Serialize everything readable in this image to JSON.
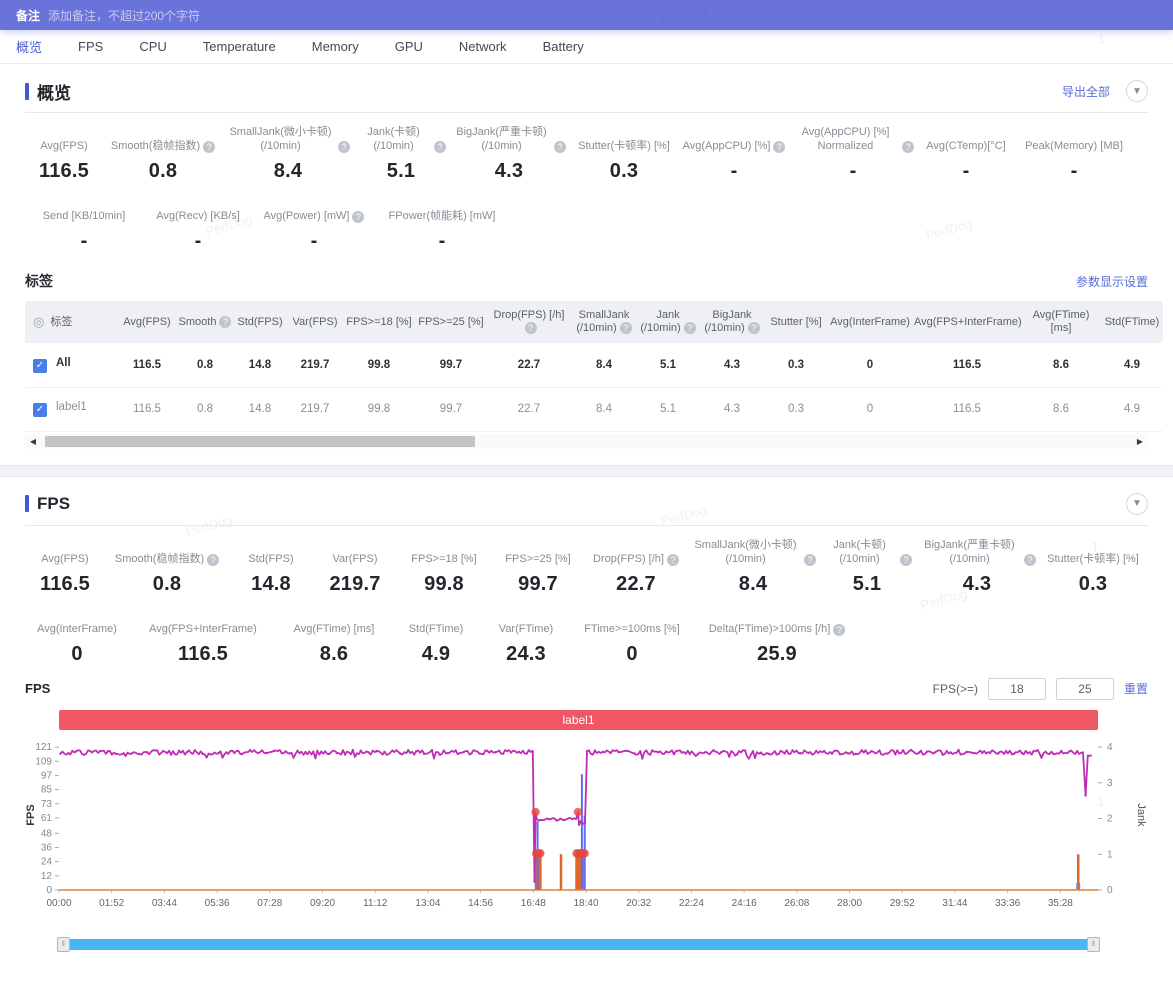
{
  "banner": {
    "label": "备注",
    "placeholder": "添加备注，不超过200个字符"
  },
  "tabs": [
    "概览",
    "FPS",
    "CPU",
    "Temperature",
    "Memory",
    "GPU",
    "Network",
    "Battery"
  ],
  "active_tab": "概览",
  "watermark_text": "PerfDog",
  "watermark_page_number": "1",
  "overview": {
    "title": "概览",
    "export_label": "导出全部",
    "metrics_row1": [
      {
        "label": "Avg(FPS)",
        "value": "116.5",
        "help": false
      },
      {
        "label": "Smooth(稳帧指数)",
        "value": "0.8",
        "help": true
      },
      {
        "label": "SmallJank(微小卡顿) (/10min)",
        "value": "8.4",
        "help": true
      },
      {
        "label": "Jank(卡顿) (/10min)",
        "value": "5.1",
        "help": true
      },
      {
        "label": "BigJank(严重卡顿) (/10min)",
        "value": "4.3",
        "help": true
      },
      {
        "label": "Stutter(卡顿率) [%]",
        "value": "0.3",
        "help": false
      },
      {
        "label": "Avg(AppCPU) [%]",
        "value": "-",
        "help": true
      },
      {
        "label": "Avg(AppCPU) [%] Normalized",
        "value": "-",
        "help": true
      },
      {
        "label": "Avg(CTemp)[°C]",
        "value": "-",
        "help": false
      },
      {
        "label": "Peak(Memory) [MB]",
        "value": "-",
        "help": false
      }
    ],
    "metrics_row2": [
      {
        "label": "Send [KB/10min]",
        "value": "-",
        "help": false
      },
      {
        "label": "Avg(Recv) [KB/s]",
        "value": "-",
        "help": false
      },
      {
        "label": "Avg(Power) [mW]",
        "value": "-",
        "help": true
      },
      {
        "label": "FPower(帧能耗) [mW]",
        "value": "-",
        "help": false
      }
    ]
  },
  "labels_table": {
    "title": "标签",
    "settings_label": "参数显示设置",
    "columns": [
      {
        "label": "标签",
        "help": false,
        "icon": "radio"
      },
      {
        "label": "Avg(FPS)",
        "help": false
      },
      {
        "label": "Smooth",
        "help": true
      },
      {
        "label": "Std(FPS)",
        "help": false
      },
      {
        "label": "Var(FPS)",
        "help": false
      },
      {
        "label": "FPS>=18 [%]",
        "help": false
      },
      {
        "label": "FPS>=25 [%]",
        "help": false
      },
      {
        "label": "Drop(FPS) [/h]",
        "help": true
      },
      {
        "label": "SmallJank (/10min)",
        "help": true
      },
      {
        "label": "Jank (/10min)",
        "help": true
      },
      {
        "label": "BigJank (/10min)",
        "help": true
      },
      {
        "label": "Stutter [%]",
        "help": false
      },
      {
        "label": "Avg(InterFrame)",
        "help": false
      },
      {
        "label": "Avg(FPS+InterFrame)",
        "help": false
      },
      {
        "label": "Avg(FTime) [ms]",
        "help": false
      },
      {
        "label": "Std(FTime)",
        "help": false
      }
    ],
    "rows": [
      {
        "name": "All",
        "checked": true,
        "emphasis": true,
        "values": [
          "116.5",
          "0.8",
          "14.8",
          "219.7",
          "99.8",
          "99.7",
          "22.7",
          "8.4",
          "5.1",
          "4.3",
          "0.3",
          "0",
          "116.5",
          "8.6",
          "4.9"
        ]
      },
      {
        "name": "label1",
        "checked": true,
        "emphasis": false,
        "values": [
          "116.5",
          "0.8",
          "14.8",
          "219.7",
          "99.8",
          "99.7",
          "22.7",
          "8.4",
          "5.1",
          "4.3",
          "0.3",
          "0",
          "116.5",
          "8.6",
          "4.9"
        ]
      }
    ]
  },
  "fps_section": {
    "title": "FPS",
    "metrics_row1": [
      {
        "label": "Avg(FPS)",
        "value": "116.5",
        "help": false
      },
      {
        "label": "Smooth(稳帧指数)",
        "value": "0.8",
        "help": true
      },
      {
        "label": "Std(FPS)",
        "value": "14.8",
        "help": false
      },
      {
        "label": "Var(FPS)",
        "value": "219.7",
        "help": false
      },
      {
        "label": "FPS>=18 [%]",
        "value": "99.8",
        "help": false
      },
      {
        "label": "FPS>=25 [%]",
        "value": "99.7",
        "help": false
      },
      {
        "label": "Drop(FPS) [/h]",
        "value": "22.7",
        "help": true
      },
      {
        "label": "SmallJank(微小卡顿) (/10min)",
        "value": "8.4",
        "help": true
      },
      {
        "label": "Jank(卡顿) (/10min)",
        "value": "5.1",
        "help": true
      },
      {
        "label": "BigJank(严重卡顿) (/10min)",
        "value": "4.3",
        "help": true
      },
      {
        "label": "Stutter(卡顿率) [%]",
        "value": "0.3",
        "help": false
      }
    ],
    "metrics_row2": [
      {
        "label": "Avg(InterFrame)",
        "value": "0",
        "help": false
      },
      {
        "label": "Avg(FPS+InterFrame)",
        "value": "116.5",
        "help": false
      },
      {
        "label": "Avg(FTime) [ms]",
        "value": "8.6",
        "help": false
      },
      {
        "label": "Std(FTime)",
        "value": "4.9",
        "help": false
      },
      {
        "label": "Var(FTime)",
        "value": "24.3",
        "help": false
      },
      {
        "label": "FTime>=100ms [%]",
        "value": "0",
        "help": false
      },
      {
        "label": "Delta(FTime)>100ms [/h]",
        "value": "25.9",
        "help": true
      }
    ]
  },
  "chart_data": {
    "type": "line",
    "title": "FPS",
    "banner_label": "label1",
    "threshold_label": "FPS(>=)",
    "thresholds": [
      "18",
      "25"
    ],
    "reset_label": "重置",
    "x_axis": {
      "ticks": [
        "00:00",
        "01:52",
        "03:44",
        "05:36",
        "07:28",
        "09:20",
        "11:12",
        "13:04",
        "14:56",
        "16:48",
        "18:40",
        "20:32",
        "22:24",
        "24:16",
        "26:08",
        "28:00",
        "29:52",
        "31:44",
        "33:36",
        "35:28"
      ],
      "tick_interval_sec": 112,
      "t_max_min": 36.8
    },
    "y_left": {
      "label": "FPS",
      "ticks": [
        121,
        109,
        97,
        85,
        73,
        61,
        48,
        36,
        24,
        12,
        0
      ],
      "max": 121,
      "axis_max": 127
    },
    "y_right": {
      "label": "Jank",
      "ticks": [
        4,
        3,
        2,
        1,
        0
      ],
      "max": 4
    },
    "fps_series": {
      "name": "FPS",
      "color": "#bf2cb5",
      "segments": [
        {
          "t0": 0.05,
          "t1": 16.8,
          "fps": 116.5,
          "noise": 2
        },
        {
          "t0": 16.84,
          "t1": 16.84,
          "fps": 7,
          "noise": 0
        },
        {
          "t0": 16.88,
          "t1": 16.88,
          "fps": 66,
          "noise": 0
        },
        {
          "t0": 16.92,
          "t1": 18.34,
          "fps": 60,
          "noise": 1.3
        },
        {
          "t0": 18.38,
          "t1": 18.38,
          "fps": 66,
          "noise": 0
        },
        {
          "t0": 18.42,
          "t1": 18.64,
          "fps": 52,
          "noise": 9
        },
        {
          "t0": 18.7,
          "t1": 36.28,
          "fps": 116.5,
          "noise": 2
        },
        {
          "t0": 36.36,
          "t1": 36.36,
          "fps": 80,
          "noise": 0
        },
        {
          "t0": 36.44,
          "t1": 36.62,
          "fps": 114,
          "noise": 1.5
        }
      ]
    },
    "interframe_series": {
      "name": "InterFrame",
      "color": "#d9833f",
      "value": 0
    },
    "jank_bars": {
      "name": "Jank events",
      "color": "#e2662c",
      "axis": "right",
      "events": [
        {
          "t": 16.9,
          "jank": 1
        },
        {
          "t": 16.98,
          "jank": 1
        },
        {
          "t": 17.05,
          "jank": 0.95
        },
        {
          "t": 17.78,
          "jank": 1
        },
        {
          "t": 18.33,
          "jank": 1
        },
        {
          "t": 18.41,
          "jank": 1
        },
        {
          "t": 18.49,
          "jank": 1
        },
        {
          "t": 18.56,
          "jank": 1
        },
        {
          "t": 36.1,
          "jank": 1
        }
      ]
    },
    "bigjank_lines": {
      "name": "BigJank spikes",
      "color": "#5f6ceb",
      "events": [
        {
          "t": 16.95,
          "top_fps": 58
        },
        {
          "t": 18.52,
          "top_fps": 98
        },
        {
          "t": 18.62,
          "top_fps": 63
        }
      ]
    },
    "base_bars": {
      "color": "#4f86e8",
      "events": [
        {
          "t": 16.92,
          "h_fps": 12
        },
        {
          "t": 16.99,
          "h_fps": 10
        },
        {
          "t": 18.41,
          "h_fps": 13
        },
        {
          "t": 18.49,
          "h_fps": 11
        },
        {
          "t": 18.57,
          "h_fps": 9
        },
        {
          "t": 36.1,
          "h_fps": 6
        }
      ]
    },
    "drop_markers": {
      "color": "#e8453f",
      "points": [
        [
          16.88,
          66
        ],
        [
          16.9,
          31
        ],
        [
          16.98,
          31
        ],
        [
          17.05,
          31
        ],
        [
          18.33,
          31
        ],
        [
          18.38,
          66
        ],
        [
          18.41,
          31
        ],
        [
          18.49,
          31
        ],
        [
          18.56,
          31
        ],
        [
          18.62,
          31
        ]
      ]
    }
  }
}
